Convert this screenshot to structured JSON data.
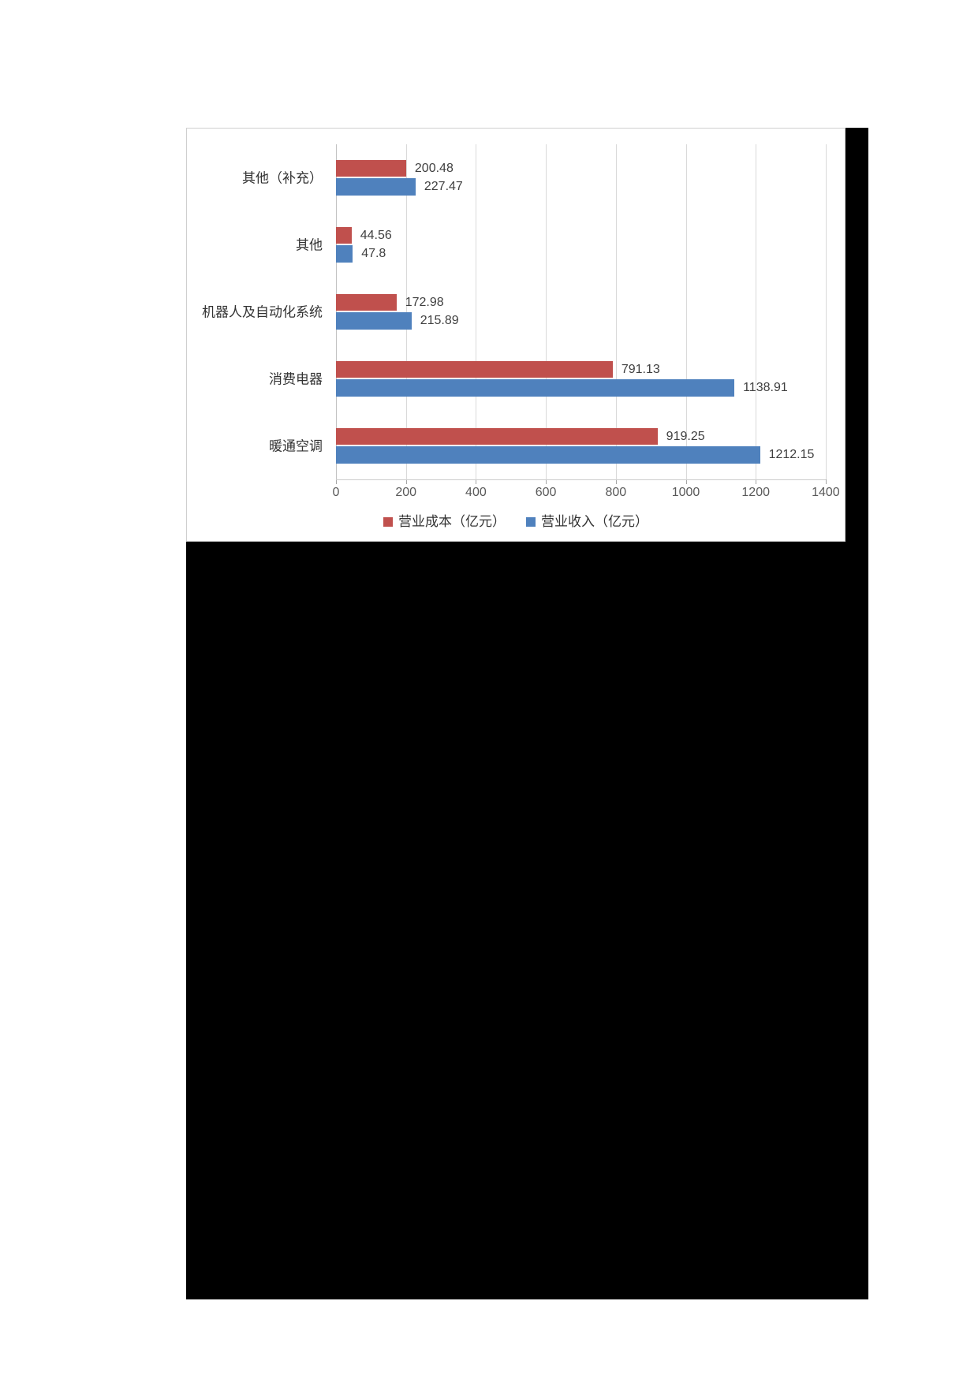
{
  "chart_data": {
    "type": "bar",
    "orientation": "horizontal",
    "title": "",
    "categories": [
      "其他（补充）",
      "其他",
      "机器人及自动化系统",
      "消费电器",
      "暖通空调"
    ],
    "series": [
      {
        "name": "营业成本（亿元）",
        "color": "#C0504D",
        "values": [
          200.48,
          44.56,
          172.98,
          791.13,
          919.25
        ]
      },
      {
        "name": "营业收入（亿元）",
        "color": "#4F81BD",
        "values": [
          227.47,
          47.8,
          215.89,
          1138.91,
          1212.15
        ]
      }
    ],
    "xticks": [
      0,
      200,
      400,
      600,
      800,
      1000,
      1200,
      1400
    ],
    "xlim": [
      0,
      1400
    ],
    "grid": true,
    "data_labels": true,
    "legend_position": "bottom-center",
    "colors": {
      "gridline": "#d9d9d9",
      "axis_text": "#595959",
      "value_text": "#3f3f3f",
      "panel_border": "#cfcfcf",
      "background_block": "#000000"
    }
  }
}
